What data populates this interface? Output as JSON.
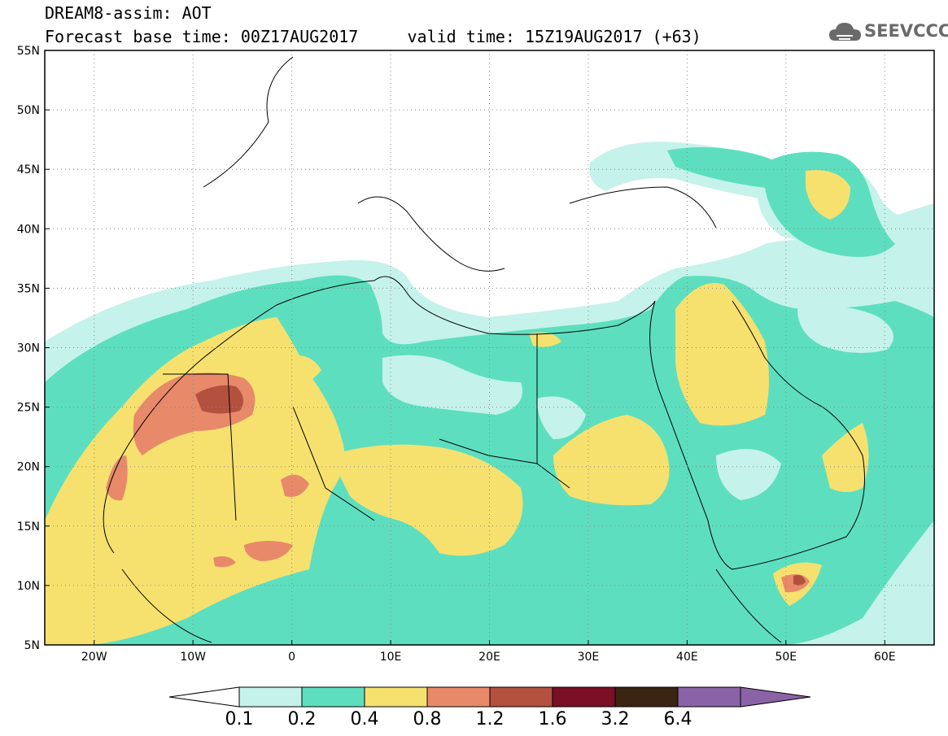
{
  "header": {
    "title_line_1": "DREAM8-assim: AOT",
    "title_line_2": "Forecast base time: 00Z17AUG2017     valid time: 15Z19AUG2017 (+63)",
    "logo_text": "SEEVCCC",
    "logo_icon": "cloud-icon"
  },
  "map": {
    "variable": "AOT",
    "lon_range": [
      -25,
      65
    ],
    "lat_range": [
      5,
      55
    ],
    "lon_ticks": [
      {
        "value": -20,
        "label": "20W"
      },
      {
        "value": -10,
        "label": "10W"
      },
      {
        "value": 0,
        "label": "0"
      },
      {
        "value": 10,
        "label": "10E"
      },
      {
        "value": 20,
        "label": "20E"
      },
      {
        "value": 30,
        "label": "30E"
      },
      {
        "value": 40,
        "label": "40E"
      },
      {
        "value": 50,
        "label": "50E"
      },
      {
        "value": 60,
        "label": "60E"
      }
    ],
    "lat_ticks": [
      {
        "value": 5,
        "label": "5N"
      },
      {
        "value": 10,
        "label": "10N"
      },
      {
        "value": 15,
        "label": "15N"
      },
      {
        "value": 20,
        "label": "20N"
      },
      {
        "value": 25,
        "label": "25N"
      },
      {
        "value": 30,
        "label": "30N"
      },
      {
        "value": 35,
        "label": "35N"
      },
      {
        "value": 40,
        "label": "40N"
      },
      {
        "value": 45,
        "label": "45N"
      },
      {
        "value": 50,
        "label": "50N"
      },
      {
        "value": 55,
        "label": "55N"
      }
    ],
    "grid": "dotted"
  },
  "colorbar": {
    "labels": [
      "0.1",
      "0.2",
      "0.4",
      "0.8",
      "1.2",
      "1.6",
      "3.2",
      "6.4"
    ],
    "colors": [
      "#ffffff",
      "#c5f2ea",
      "#5ddfbf",
      "#f6e16f",
      "#e8896a",
      "#b4503e",
      "#7a0f26",
      "#3a2513",
      "#8a62a6"
    ]
  }
}
